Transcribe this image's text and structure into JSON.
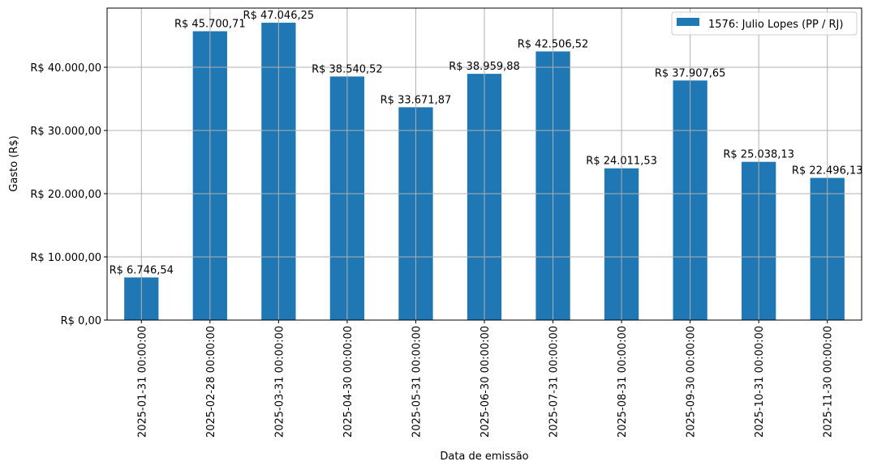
{
  "chart_data": {
    "type": "bar",
    "title": "",
    "xlabel": "Data de emissão",
    "ylabel": "Gasto (R$)",
    "ylim": [
      0,
      49360
    ],
    "grid": true,
    "legend_position": "upper right",
    "categories": [
      "2025-01-31 00:00:00",
      "2025-02-28 00:00:00",
      "2025-03-31 00:00:00",
      "2025-04-30 00:00:00",
      "2025-05-31 00:00:00",
      "2025-06-30 00:00:00",
      "2025-07-31 00:00:00",
      "2025-08-31 00:00:00",
      "2025-09-30 00:00:00",
      "2025-10-31 00:00:00",
      "2025-11-30 00:00:00"
    ],
    "series": [
      {
        "name": "1576: Julio Lopes (PP / RJ)",
        "color": "#1f77b4",
        "values": [
          6746.54,
          45700.71,
          47046.25,
          38540.52,
          33671.87,
          38959.88,
          42506.52,
          24011.53,
          37907.65,
          25038.13,
          22496.13
        ],
        "labels": [
          "R$ 6.746,54",
          "R$ 45.700,71",
          "R$ 47.046,25",
          "R$ 38.540,52",
          "R$ 33.671,87",
          "R$ 38.959,88",
          "R$ 42.506,52",
          "R$ 24.011,53",
          "R$ 37.907,65",
          "R$ 25.038,13",
          "R$ 22.496,13"
        ]
      }
    ],
    "yticks": [
      0,
      10000,
      20000,
      30000,
      40000
    ],
    "ytick_labels": [
      "R$ 0,00",
      "R$ 10.000,00",
      "R$ 20.000,00",
      "R$ 30.000,00",
      "R$ 40.000,00"
    ]
  },
  "colors": {
    "bar": "#1f77b4",
    "grid": "#b0b0b0",
    "axis": "#000000",
    "legend_border": "#cccccc"
  }
}
